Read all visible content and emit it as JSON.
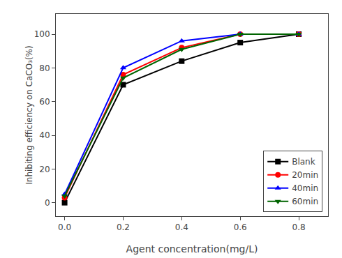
{
  "chart_data": {
    "type": "line",
    "x": [
      0.0,
      0.2,
      0.4,
      0.6,
      0.8
    ],
    "series": [
      {
        "name": "Blank",
        "color": "#000000",
        "marker": "square",
        "values": [
          0,
          70,
          84,
          95,
          100
        ]
      },
      {
        "name": "20min",
        "color": "#ff0000",
        "marker": "circle",
        "values": [
          3,
          76,
          92,
          100,
          100
        ]
      },
      {
        "name": "40min",
        "color": "#0000ff",
        "marker": "triangle-up",
        "values": [
          5,
          80,
          96,
          100,
          100
        ]
      },
      {
        "name": "60min",
        "color": "#006400",
        "marker": "triangle-down",
        "values": [
          4,
          74,
          91,
          100,
          100
        ]
      }
    ],
    "xlabel": "Agent concentration(mg/L)",
    "ylabel": "Inhibiting efficiency on CaCO₃(%)",
    "xlim": [
      -0.03,
      0.9
    ],
    "ylim": [
      -8,
      112
    ],
    "xticks": [
      {
        "value": 0.0,
        "label": "0.0"
      },
      0.2,
      0.4,
      0.6,
      0.8
    ],
    "yticks": [
      0,
      20,
      40,
      60,
      80,
      100
    ],
    "legend": "lower right",
    "grid": false
  }
}
